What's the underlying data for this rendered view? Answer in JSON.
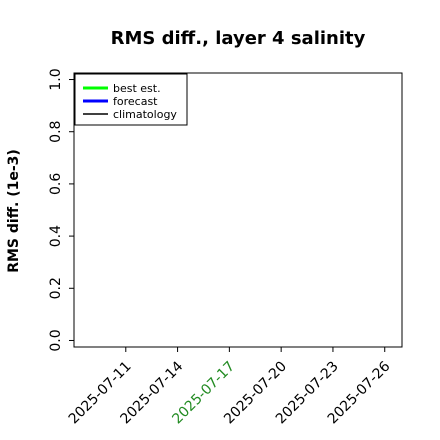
{
  "chart_data": {
    "type": "line",
    "title": "RMS diff., layer 4 salinity",
    "xlabel": "",
    "ylabel": "RMS diff. (1e-3)",
    "ylim": [
      0.0,
      1.0
    ],
    "yticks": [
      "0.0",
      "0.2",
      "0.4",
      "0.6",
      "0.8",
      "1.0"
    ],
    "xlim": [
      "2025-07-08",
      "2025-07-27"
    ],
    "x_tick_labels": [
      {
        "label": "2025-07-11",
        "color": "#000000"
      },
      {
        "label": "2025-07-14",
        "color": "#000000"
      },
      {
        "label": "2025-07-17",
        "color": "#228b22"
      },
      {
        "label": "2025-07-20",
        "color": "#000000"
      },
      {
        "label": "2025-07-23",
        "color": "#000000"
      },
      {
        "label": "2025-07-26",
        "color": "#000000"
      }
    ],
    "series": [
      {
        "name": "best est.",
        "color": "#00ff00",
        "values": []
      },
      {
        "name": "forecast",
        "color": "#0000ff",
        "values": []
      },
      {
        "name": "climatology",
        "color": "#000000",
        "values": []
      }
    ],
    "grid": false,
    "legend_position": "top-left"
  }
}
